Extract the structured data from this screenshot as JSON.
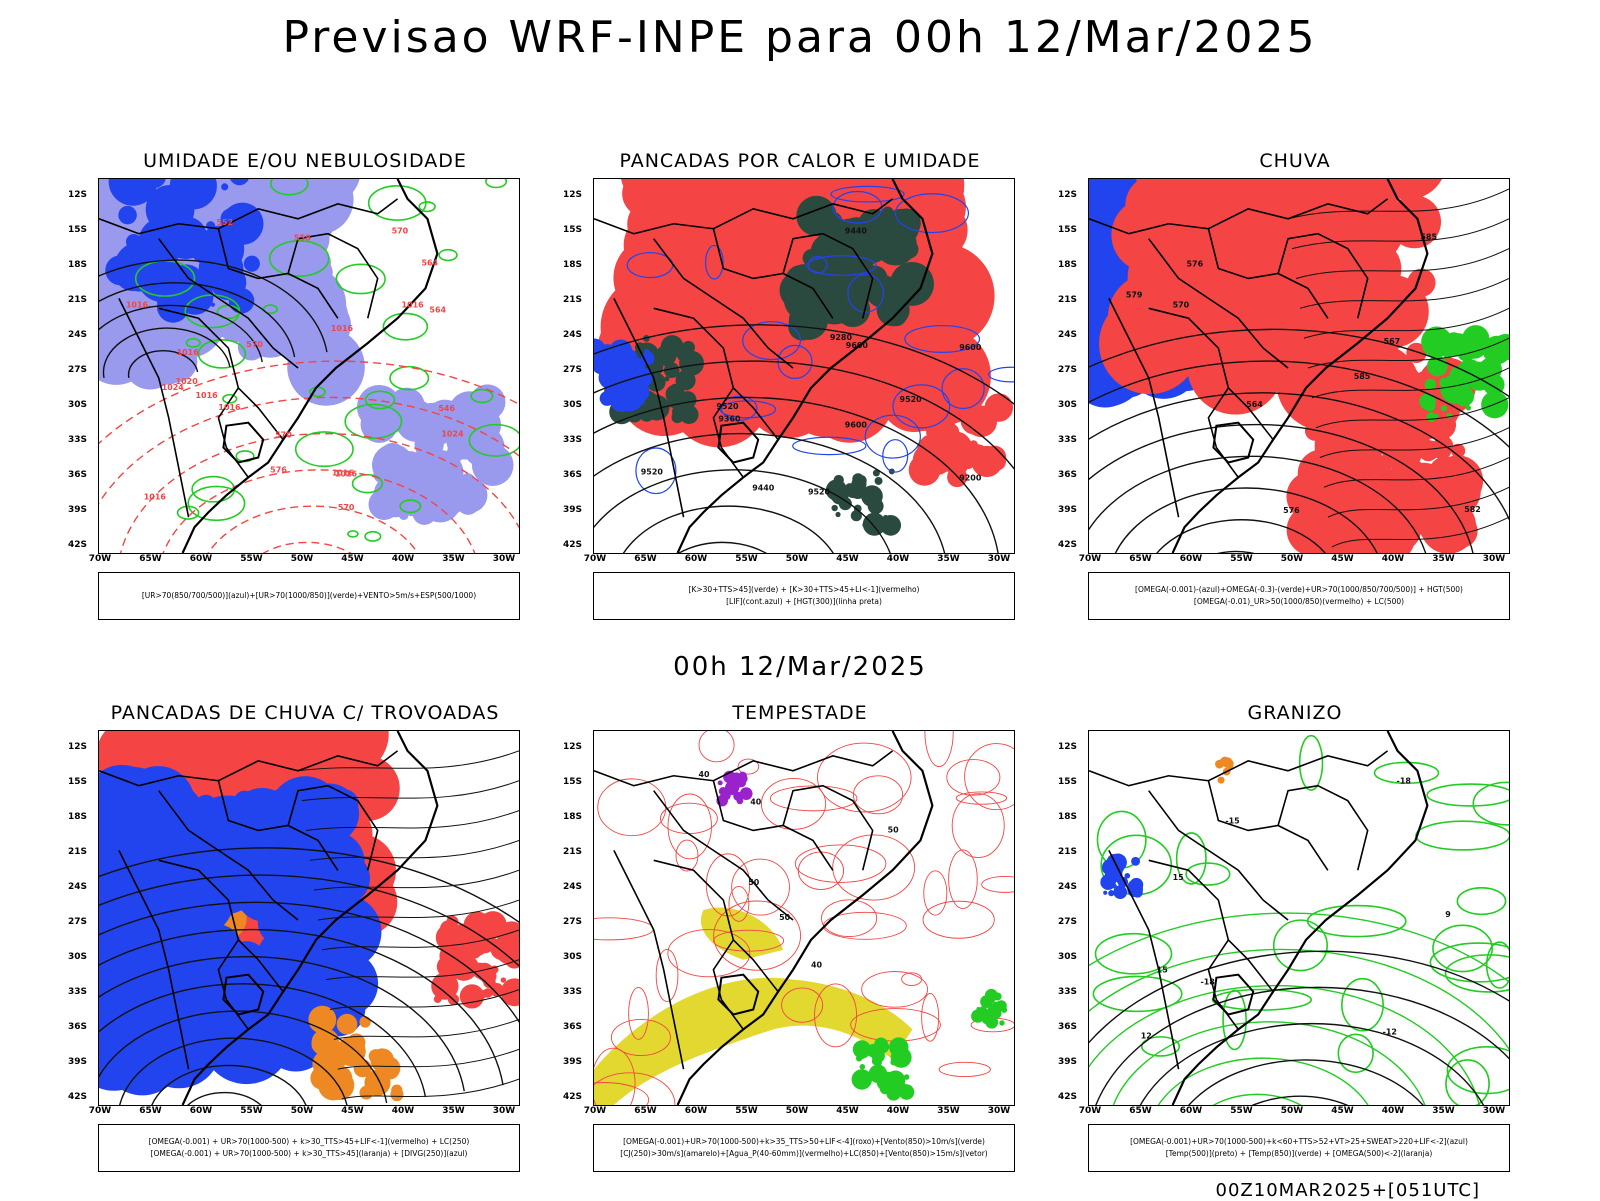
{
  "header": {
    "title": "Previsao WRF-INPE  para 00h 12/Mar/2025",
    "mid_label": "00h 12/Mar/2025",
    "run_label": "00Z10MAR2025+[051UTC]"
  },
  "axes": {
    "lat_labels": [
      "12S",
      "15S",
      "18S",
      "21S",
      "24S",
      "27S",
      "30S",
      "33S",
      "36S",
      "39S",
      "42S"
    ],
    "lon_labels": [
      "70W",
      "65W",
      "60W",
      "55W",
      "50W",
      "45W",
      "40W",
      "35W",
      "30W"
    ]
  },
  "colors": {
    "red": "#f44444",
    "green": "#22cc22",
    "blue": "#2244ee",
    "lavender": "#9999ee",
    "darkgreen": "#2a4a40",
    "orange": "#ee8822",
    "yellow": "#e2d830",
    "purple": "#9922cc"
  },
  "panels": [
    {
      "title": "UMIDADE E/OU NEBULOSIDADE",
      "legend": [
        "[UR>70(850/700/500)](azul)+[UR>70(1000/850)](verde)+VENTO>5m/s+ESP(500/1000)"
      ],
      "contour_labels": [
        "1016",
        "1016",
        "1016",
        "1024",
        "1016",
        "1016",
        "1016",
        "1016",
        "1020",
        "1016",
        "1024",
        "570",
        "570",
        "576",
        "570",
        "564",
        "558",
        "552",
        "546",
        "570",
        "564",
        "1016"
      ]
    },
    {
      "title": "PANCADAS POR CALOR E UMIDADE",
      "legend": [
        "[K>30+TTS>45](verde) + [K>30+TTS>45+LI<-1](vermelho)",
        "[LIF](cont.azul) + [HGT(300)](linha preta)"
      ],
      "contour_labels": [
        "9600",
        "9520",
        "9520",
        "9600",
        "9600",
        "9520",
        "9440",
        "9360",
        "9280",
        "9200",
        "9440",
        "9520"
      ]
    },
    {
      "title": "CHUVA",
      "legend": [
        "[OMEGA(-0.001)-(azul)+OMEGA(-0.3)-(verde)+UR>70(1000/850/700/500)] + HGT(500)",
        "[OMEGA(-0.01)_UR>50(1000/850)(vermelho) + LC(500)"
      ],
      "contour_labels": [
        "585",
        "585",
        "576",
        "570",
        "567",
        "564",
        "576",
        "582",
        "579"
      ]
    },
    {
      "title": "PANCADAS DE CHUVA C/ TROVOADAS",
      "legend": [
        "[OMEGA(-0.001) + UR>70(1000-500) + k>30_TTS>45+LIF<-1](vermelho) + LC(250)",
        "[OMEGA(-0.001) + UR>70(1000-500) + k>30_TTS>45](laranja) + [DIVG(250)](azul)"
      ],
      "contour_labels": []
    },
    {
      "title": "TEMPESTADE",
      "legend": [
        "[OMEGA(-0.001)+UR>70(1000-500)+k>35_TTS>50+LIF<-4](roxo)+[Vento(850)>10m/s](verde)",
        "[CJ(250)>30m/s](amarelo)+[Agua_P(40-60mm)](vermelho)+LC(850)+[Vento(850)>15m/s](vetor)"
      ],
      "contour_labels": [
        "50",
        "50",
        "40",
        "40",
        "50",
        "40"
      ]
    },
    {
      "title": "GRANIZO",
      "legend": [
        "[OMEGA(-0.001)+UR>70(1000-500)+k<60+TTS>52+VT>25+SWEAT>220+LIF<-2](azul)",
        "[Temp(500)](preto) + [Temp(850)](verde) + [OMEGA(500)<-2](laranja)"
      ],
      "contour_labels": [
        "-18",
        "-18",
        "-15",
        "-12",
        "15",
        "15",
        "9",
        "12"
      ]
    }
  ]
}
